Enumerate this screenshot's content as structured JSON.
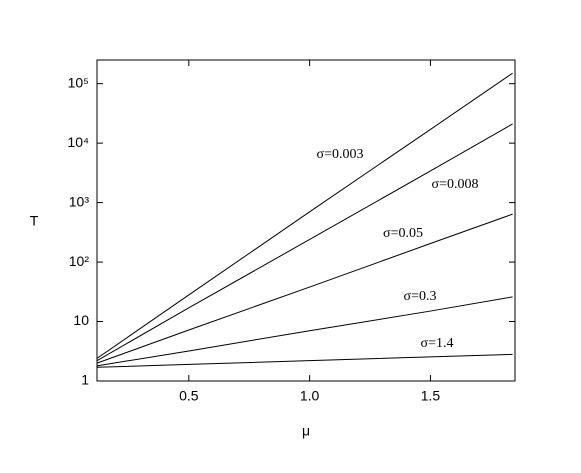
{
  "chart_data": {
    "type": "line",
    "x_label": "μ",
    "y_label": "T",
    "log_y": true,
    "x": [
      0.12,
      0.5,
      1.0,
      1.5,
      1.84
    ],
    "series": [
      {
        "name": "σ=0.003",
        "color": "#000000",
        "values": [
          2.4,
          28,
          700,
          17000,
          150000
        ]
      },
      {
        "name": "σ=0.008",
        "color": "#000000",
        "values": [
          2.2,
          17,
          240,
          3400,
          21000
        ]
      },
      {
        "name": "σ=0.05",
        "color": "#000000",
        "values": [
          2.0,
          7.2,
          38,
          205,
          640
        ]
      },
      {
        "name": "σ=0.3",
        "color": "#000000",
        "values": [
          1.8,
          3.2,
          7,
          15,
          26
        ]
      },
      {
        "name": "σ=1.4",
        "color": "#000000",
        "values": [
          1.7,
          1.9,
          2.2,
          2.55,
          2.8
        ]
      }
    ],
    "xlim": [
      0.12,
      1.85
    ],
    "xticks": [
      0.5,
      {
        "value": 1.0,
        "label": "1.0"
      },
      1.5
    ],
    "ylim": [
      1,
      250000
    ],
    "yticks": [
      1,
      10,
      {
        "value": 100,
        "label": "10²"
      },
      {
        "value": 1000,
        "label": "10³"
      },
      {
        "value": 10000,
        "label": "10⁴"
      },
      {
        "value": 100000,
        "label": "10⁵"
      }
    ],
    "grid": false
  }
}
